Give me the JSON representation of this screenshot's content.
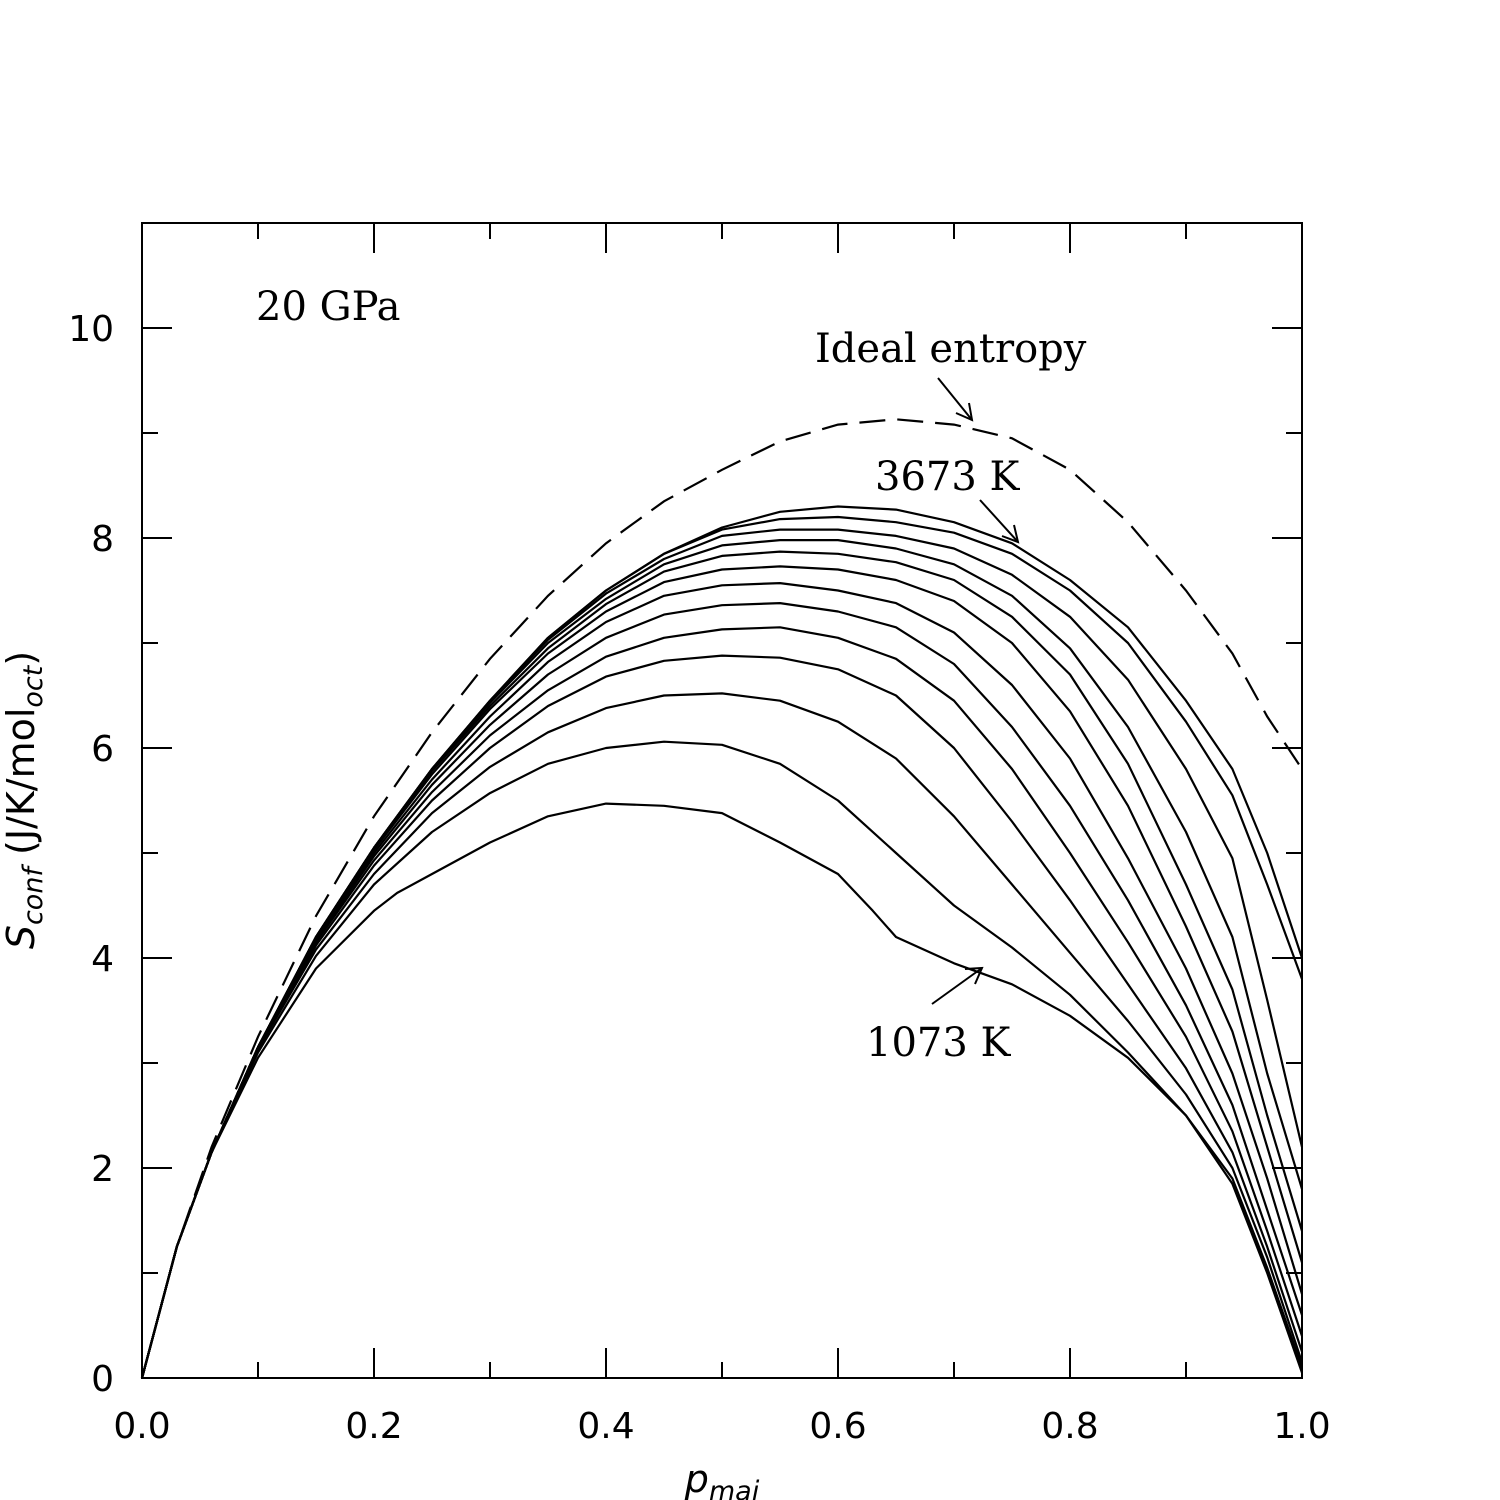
{
  "chart_data": {
    "type": "line",
    "xlabel": {
      "base": "p",
      "sub": "maj"
    },
    "ylabel": {
      "base": "S",
      "sub": "conf",
      "unit_open": " (J/K/mol",
      "unit_sub": "oct",
      "unit_close": ")"
    },
    "xlim": [
      0,
      1
    ],
    "ylim": [
      0,
      11
    ],
    "x_ticks": [
      "0.0",
      "0.2",
      "0.4",
      "0.6",
      "0.8",
      "1.0"
    ],
    "y_ticks": [
      "0",
      "2",
      "4",
      "6",
      "8",
      "10"
    ],
    "annotations": {
      "pressure": "20 GPa",
      "ideal": "Ideal entropy",
      "high_t": "3673 K",
      "low_t": "1073 K"
    },
    "ideal_series": {
      "x": [
        0,
        0.03,
        0.06,
        0.1,
        0.15,
        0.2,
        0.25,
        0.3,
        0.35,
        0.4,
        0.45,
        0.5,
        0.55,
        0.6,
        0.65,
        0.7,
        0.75,
        0.8,
        0.85,
        0.9,
        0.94,
        0.97,
        1.0
      ],
      "y": [
        0,
        1.25,
        2.2,
        3.25,
        4.4,
        5.35,
        6.15,
        6.85,
        7.45,
        7.95,
        8.35,
        8.65,
        8.92,
        9.08,
        9.13,
        9.08,
        8.95,
        8.65,
        8.15,
        7.5,
        6.9,
        6.3,
        5.8
      ]
    },
    "series": [
      {
        "x": [
          0,
          0.03,
          0.06,
          0.1,
          0.15,
          0.2,
          0.25,
          0.3,
          0.35,
          0.4,
          0.45,
          0.5,
          0.55,
          0.6,
          0.65,
          0.7,
          0.75,
          0.8,
          0.85,
          0.9,
          0.94,
          0.97,
          1.0
        ],
        "y": [
          0,
          1.25,
          2.15,
          3.15,
          4.2,
          5.05,
          5.8,
          6.45,
          7.05,
          7.5,
          7.85,
          8.1,
          8.25,
          8.3,
          8.27,
          8.15,
          7.95,
          7.6,
          7.15,
          6.45,
          5.8,
          5.0,
          4.0
        ]
      },
      {
        "x": [
          0,
          0.03,
          0.06,
          0.1,
          0.15,
          0.2,
          0.25,
          0.3,
          0.35,
          0.4,
          0.45,
          0.5,
          0.55,
          0.6,
          0.65,
          0.7,
          0.75,
          0.8,
          0.85,
          0.9,
          0.94,
          0.97,
          1.0
        ],
        "y": [
          0,
          1.25,
          2.15,
          3.15,
          4.2,
          5.05,
          5.8,
          6.45,
          7.05,
          7.5,
          7.85,
          8.08,
          8.18,
          8.2,
          8.15,
          8.05,
          7.85,
          7.5,
          7.0,
          6.25,
          5.55,
          4.7,
          3.8
        ]
      },
      {
        "x": [
          0,
          0.03,
          0.06,
          0.1,
          0.15,
          0.2,
          0.25,
          0.3,
          0.35,
          0.4,
          0.45,
          0.5,
          0.55,
          0.6,
          0.65,
          0.7,
          0.75,
          0.8,
          0.85,
          0.9,
          0.94,
          0.97,
          1.0
        ],
        "y": [
          0,
          1.25,
          2.15,
          3.15,
          4.2,
          5.05,
          5.8,
          6.45,
          7.03,
          7.47,
          7.8,
          8.02,
          8.08,
          8.08,
          8.02,
          7.9,
          7.65,
          7.25,
          6.65,
          5.8,
          4.95,
          3.6,
          2.2
        ]
      },
      {
        "x": [
          0,
          0.03,
          0.06,
          0.1,
          0.15,
          0.2,
          0.25,
          0.3,
          0.35,
          0.4,
          0.45,
          0.5,
          0.55,
          0.6,
          0.65,
          0.7,
          0.75,
          0.8,
          0.85,
          0.9,
          0.94,
          0.97,
          1.0
        ],
        "y": [
          0,
          1.25,
          2.15,
          3.15,
          4.2,
          5.05,
          5.8,
          6.43,
          7.0,
          7.42,
          7.75,
          7.93,
          7.98,
          7.98,
          7.9,
          7.75,
          7.45,
          6.95,
          6.2,
          5.2,
          4.2,
          2.9,
          1.8
        ]
      },
      {
        "x": [
          0,
          0.03,
          0.06,
          0.1,
          0.15,
          0.2,
          0.25,
          0.3,
          0.35,
          0.4,
          0.45,
          0.5,
          0.55,
          0.6,
          0.65,
          0.7,
          0.75,
          0.8,
          0.85,
          0.9,
          0.94,
          0.97,
          1.0
        ],
        "y": [
          0,
          1.25,
          2.15,
          3.15,
          4.2,
          5.05,
          5.78,
          6.4,
          6.95,
          7.37,
          7.68,
          7.83,
          7.87,
          7.85,
          7.77,
          7.6,
          7.25,
          6.7,
          5.85,
          4.7,
          3.7,
          2.5,
          1.4
        ]
      },
      {
        "x": [
          0,
          0.03,
          0.06,
          0.1,
          0.15,
          0.2,
          0.25,
          0.3,
          0.35,
          0.4,
          0.45,
          0.5,
          0.55,
          0.6,
          0.65,
          0.7,
          0.75,
          0.8,
          0.85,
          0.9,
          0.94,
          0.97,
          1.0
        ],
        "y": [
          0,
          1.25,
          2.15,
          3.15,
          4.2,
          5.03,
          5.75,
          6.37,
          6.9,
          7.3,
          7.58,
          7.7,
          7.73,
          7.7,
          7.6,
          7.4,
          7.0,
          6.35,
          5.45,
          4.3,
          3.3,
          2.2,
          1.1
        ]
      },
      {
        "x": [
          0,
          0.03,
          0.06,
          0.1,
          0.15,
          0.2,
          0.25,
          0.3,
          0.35,
          0.4,
          0.45,
          0.5,
          0.55,
          0.6,
          0.65,
          0.7,
          0.75,
          0.8,
          0.85,
          0.9,
          0.94,
          0.97,
          1.0
        ],
        "y": [
          0,
          1.25,
          2.15,
          3.15,
          4.18,
          5.0,
          5.7,
          6.3,
          6.82,
          7.2,
          7.45,
          7.55,
          7.57,
          7.5,
          7.38,
          7.1,
          6.6,
          5.9,
          4.95,
          3.9,
          2.9,
          1.9,
          0.8
        ]
      },
      {
        "x": [
          0,
          0.03,
          0.06,
          0.1,
          0.15,
          0.2,
          0.25,
          0.3,
          0.35,
          0.4,
          0.45,
          0.5,
          0.55,
          0.6,
          0.65,
          0.7,
          0.75,
          0.8,
          0.85,
          0.9,
          0.94,
          0.97,
          1.0
        ],
        "y": [
          0,
          1.25,
          2.15,
          3.15,
          4.17,
          4.97,
          5.65,
          6.22,
          6.7,
          7.05,
          7.27,
          7.36,
          7.38,
          7.3,
          7.15,
          6.8,
          6.2,
          5.45,
          4.55,
          3.55,
          2.6,
          1.6,
          0.6
        ]
      },
      {
        "x": [
          0,
          0.03,
          0.06,
          0.1,
          0.15,
          0.2,
          0.25,
          0.3,
          0.35,
          0.4,
          0.45,
          0.5,
          0.55,
          0.6,
          0.65,
          0.7,
          0.75,
          0.8,
          0.85,
          0.9,
          0.94,
          0.97,
          1.0
        ],
        "y": [
          0,
          1.25,
          2.15,
          3.15,
          4.15,
          4.93,
          5.58,
          6.12,
          6.55,
          6.87,
          7.05,
          7.13,
          7.15,
          7.05,
          6.85,
          6.45,
          5.8,
          5.0,
          4.15,
          3.25,
          2.35,
          1.4,
          0.4
        ]
      },
      {
        "x": [
          0,
          0.03,
          0.06,
          0.1,
          0.15,
          0.2,
          0.25,
          0.3,
          0.35,
          0.4,
          0.45,
          0.5,
          0.55,
          0.6,
          0.65,
          0.7,
          0.75,
          0.8,
          0.85,
          0.9,
          0.94,
          0.97,
          1.0
        ],
        "y": [
          0,
          1.25,
          2.15,
          3.15,
          4.12,
          4.88,
          5.5,
          6.0,
          6.4,
          6.68,
          6.83,
          6.88,
          6.86,
          6.75,
          6.5,
          6.0,
          5.3,
          4.55,
          3.75,
          2.95,
          2.15,
          1.25,
          0.25
        ]
      },
      {
        "x": [
          0,
          0.03,
          0.06,
          0.1,
          0.15,
          0.2,
          0.25,
          0.3,
          0.35,
          0.4,
          0.45,
          0.5,
          0.55,
          0.6,
          0.65,
          0.7,
          0.75,
          0.8,
          0.85,
          0.9,
          0.94,
          0.97,
          1.0
        ],
        "y": [
          0,
          1.25,
          2.15,
          3.13,
          4.08,
          4.8,
          5.38,
          5.82,
          6.15,
          6.38,
          6.5,
          6.52,
          6.45,
          6.25,
          5.9,
          5.35,
          4.7,
          4.05,
          3.4,
          2.7,
          2.0,
          1.15,
          0.15
        ]
      },
      {
        "x": [
          0,
          0.03,
          0.06,
          0.1,
          0.15,
          0.2,
          0.25,
          0.3,
          0.35,
          0.4,
          0.45,
          0.5,
          0.55,
          0.6,
          0.65,
          0.7,
          0.75,
          0.8,
          0.85,
          0.9,
          0.94,
          0.97,
          1.0
        ],
        "y": [
          0,
          1.25,
          2.15,
          3.1,
          4.02,
          4.7,
          5.2,
          5.57,
          5.85,
          6.0,
          6.06,
          6.03,
          5.85,
          5.5,
          5.0,
          4.5,
          4.1,
          3.65,
          3.1,
          2.5,
          1.9,
          1.05,
          0.1
        ]
      },
      {
        "x": [
          0,
          0.03,
          0.06,
          0.1,
          0.15,
          0.2,
          0.22,
          0.25,
          0.3,
          0.35,
          0.4,
          0.45,
          0.5,
          0.55,
          0.6,
          0.63,
          0.65,
          0.7,
          0.75,
          0.8,
          0.85,
          0.9,
          0.94,
          0.97,
          1.0
        ],
        "y": [
          0,
          1.25,
          2.15,
          3.05,
          3.9,
          4.45,
          4.62,
          4.8,
          5.1,
          5.35,
          5.47,
          5.45,
          5.38,
          5.1,
          4.8,
          4.45,
          4.2,
          3.95,
          3.75,
          3.45,
          3.05,
          2.5,
          1.85,
          1.0,
          0.05
        ]
      }
    ]
  }
}
